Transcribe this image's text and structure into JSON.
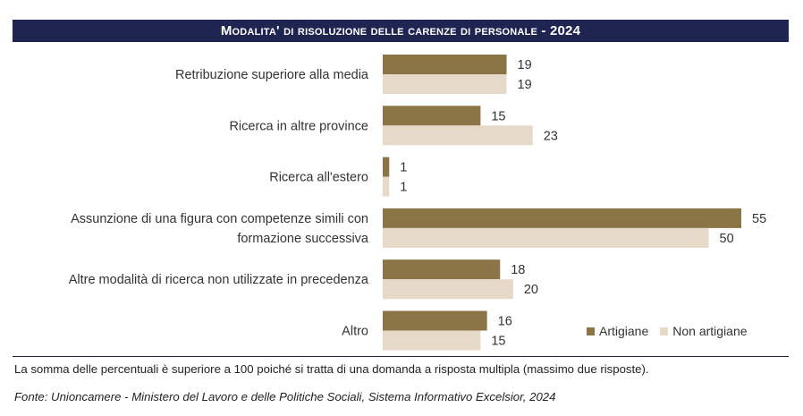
{
  "title": "Modalita' di risoluzione delle carenze di personale - 2024",
  "colors": {
    "title_bg": "#1f2450",
    "artigiane": "#8b7445",
    "non_artigiane": "#e6d9c7",
    "text": "#333333"
  },
  "chart_data": {
    "type": "bar",
    "orientation": "horizontal",
    "title": "Modalita' di risoluzione delle carenze di personale - 2024",
    "categories": [
      [
        "Retribuzione superiore alla media"
      ],
      [
        "Ricerca in altre province"
      ],
      [
        "Ricerca all'estero"
      ],
      [
        "Assunzione di una figura con competenze simili con",
        "formazione successiva"
      ],
      [
        "Altre modalità di ricerca non utilizzate in precedenza"
      ],
      [
        "Altro"
      ]
    ],
    "series": [
      {
        "name": "Artigiane",
        "color": "#8b7445",
        "values": [
          19,
          15,
          1,
          55,
          18,
          16
        ]
      },
      {
        "name": "Non artigiane",
        "color": "#e6d9c7",
        "values": [
          19,
          23,
          1,
          50,
          20,
          15
        ]
      }
    ],
    "xlim": [
      0,
      55
    ],
    "grid": false,
    "legend_position": "bottom-right",
    "data_labels": true
  },
  "legend": {
    "items": [
      {
        "label": "Artigiane",
        "color": "#8b7445"
      },
      {
        "label": "Non artigiane",
        "color": "#e6d9c7"
      }
    ]
  },
  "footer": {
    "note": "La somma delle percentuali è superiore a 100 poiché si tratta di una domanda a risposta multipla (massimo due risposte).",
    "source": "Fonte: Unioncamere - Ministero del Lavoro e delle Politiche Sociali, Sistema Informativo Excelsior, 2024"
  }
}
